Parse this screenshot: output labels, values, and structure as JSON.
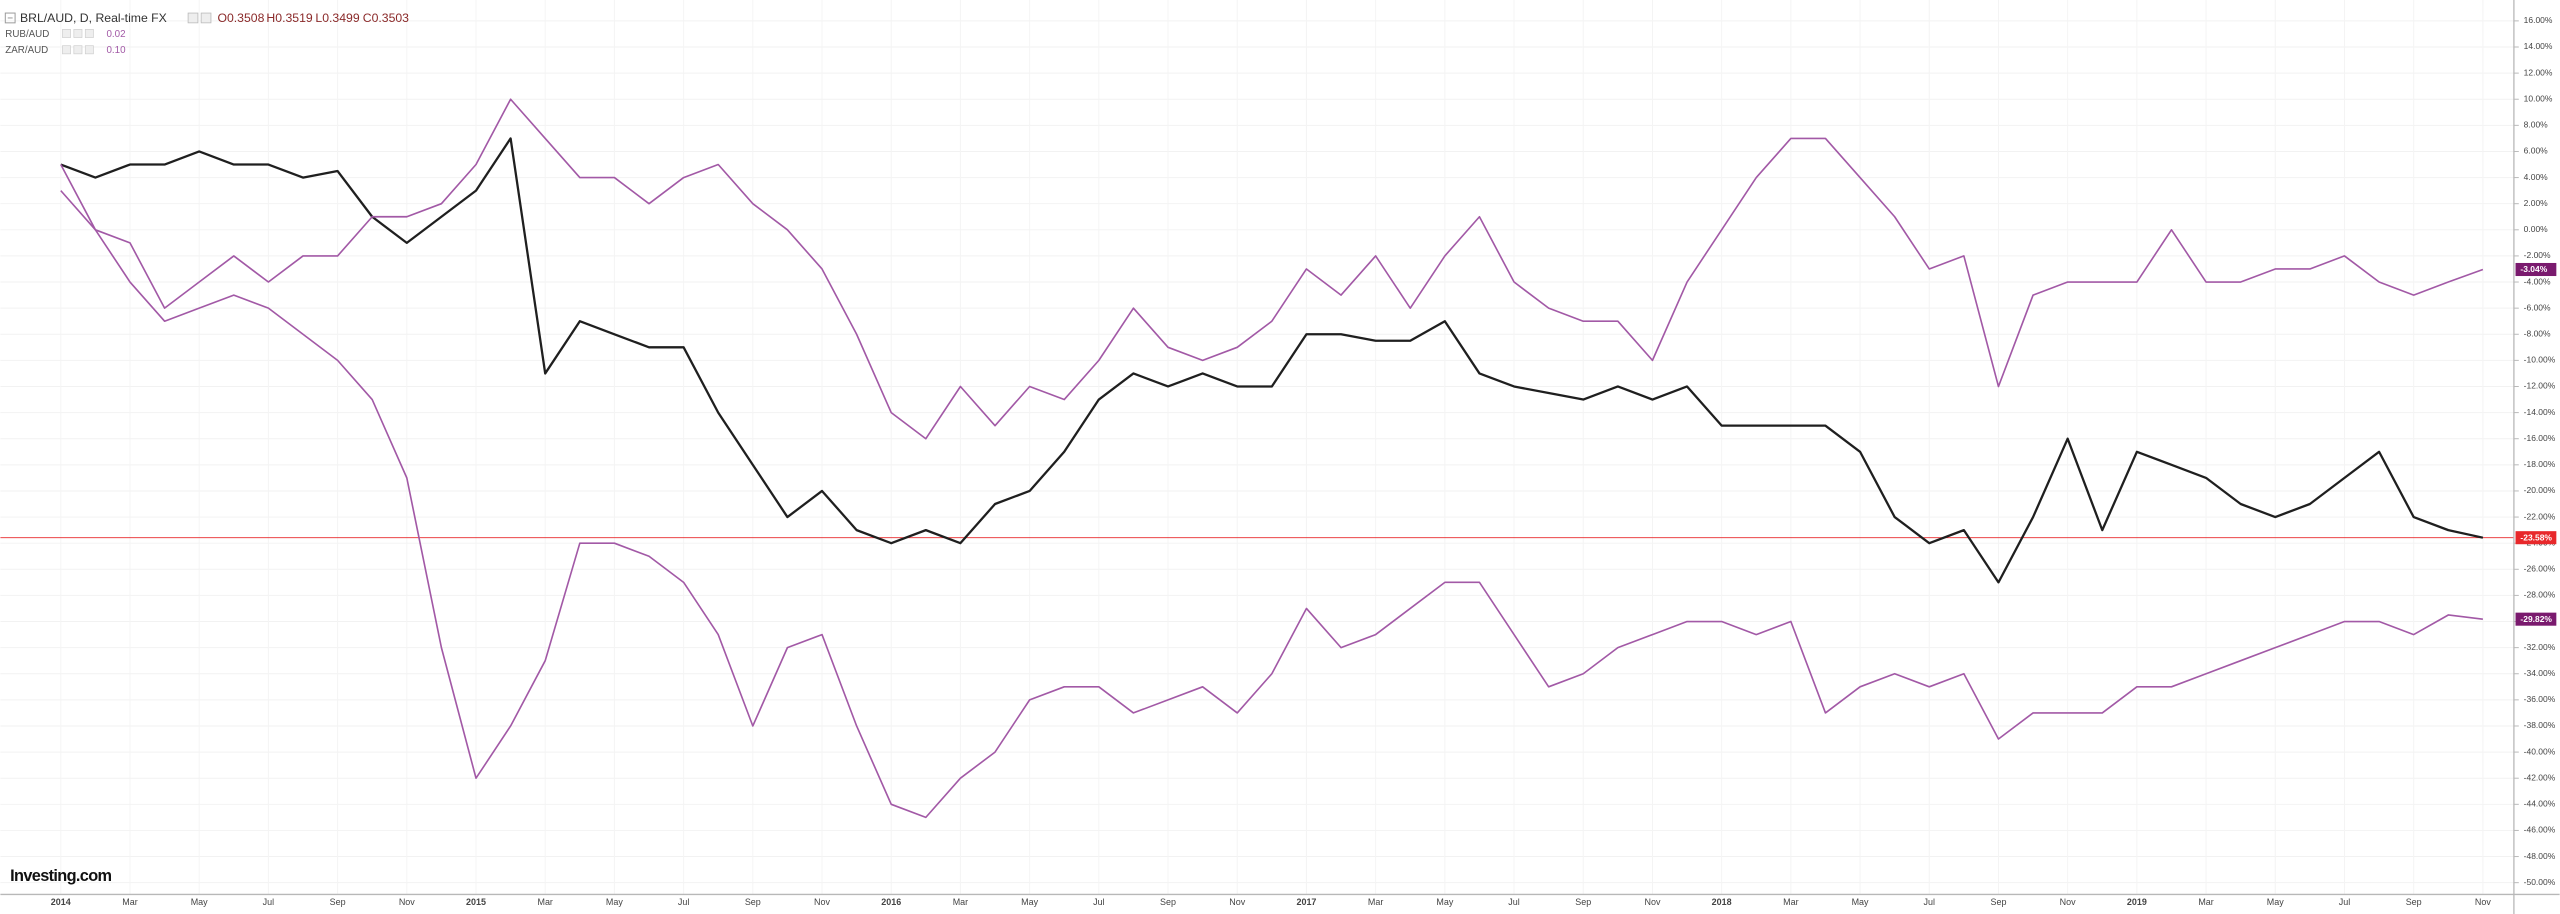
{
  "chart_data": {
    "type": "line",
    "header": {
      "ohlc": [
        "O0.3508",
        "H0.3519",
        "L0.3499",
        "C0.3503"
      ]
    },
    "watermark": "Investing.com",
    "categories": [
      "2014",
      null,
      "Mar",
      null,
      "May",
      null,
      "Jul",
      null,
      "Sep",
      null,
      "Nov",
      null,
      "2015",
      null,
      "Mar",
      null,
      "May",
      null,
      "Jul",
      null,
      "Sep",
      null,
      "Nov",
      null,
      "2016",
      null,
      "Mar",
      null,
      "May",
      null,
      "Jul",
      null,
      "Sep",
      null,
      "Nov",
      null,
      "2017",
      null,
      "Mar",
      null,
      "May",
      null,
      "Jul",
      null,
      "Sep",
      null,
      "Nov",
      null,
      "2018",
      null,
      "Mar",
      null,
      "May",
      null,
      "Jul",
      null,
      "Sep",
      null,
      "Nov",
      null,
      "2019",
      null,
      "Mar",
      null,
      "May",
      null,
      "Jul",
      null,
      "Sep",
      null,
      "Nov"
    ],
    "series": [
      {
        "name": "BRL/AUD, D, Real-time FX",
        "color": "#1f1f1f",
        "label_color": "#e8282b",
        "price_line": true,
        "values": [
          5,
          4,
          5,
          5,
          6,
          5,
          5,
          4,
          4.5,
          1,
          -1,
          1,
          3,
          7,
          -11,
          -7,
          -8,
          -9,
          -9,
          -14,
          -18,
          -22,
          -20,
          -23,
          -24,
          -23,
          -24,
          -21,
          -20,
          -17,
          -13,
          -11,
          -12,
          -11,
          -12,
          -12,
          -8,
          -8,
          -8.5,
          -8.5,
          -7,
          -11,
          -12,
          -12.5,
          -13,
          -12,
          -13,
          -12,
          -15,
          -15,
          -15,
          -15,
          -17,
          -22,
          -24,
          -23,
          -27,
          -22,
          -16,
          -23,
          -17,
          -18,
          -19,
          -21,
          -22,
          -21,
          -19,
          -17,
          -22,
          -23,
          -23.58
        ],
        "value_labels": [
          null,
          null,
          null,
          null,
          null,
          null,
          null,
          null,
          null,
          null,
          null,
          null,
          null,
          null,
          null,
          null,
          null,
          null,
          null,
          null,
          null,
          null,
          null,
          null,
          null,
          null,
          null,
          null,
          null,
          null,
          null,
          null,
          null,
          null,
          null,
          null,
          null,
          null,
          null,
          null,
          null,
          null,
          null,
          null,
          null,
          null,
          null,
          null,
          null,
          null,
          null,
          null,
          null,
          null,
          null,
          null,
          null,
          null,
          null,
          null,
          null,
          null,
          null,
          null,
          null,
          null,
          null,
          null,
          null,
          null,
          "-23.58%"
        ]
      },
      {
        "name": "RUB/AUD",
        "last_price": "0.02",
        "color": "#a259a6",
        "label_color": "#7a1a6e",
        "values": [
          3,
          0,
          -4,
          -7,
          -6,
          -5,
          -6,
          -8,
          -10,
          -13,
          -19,
          -32,
          -42,
          -38,
          -33,
          -24,
          -24,
          -25,
          -27,
          -31,
          -38,
          -32,
          -31,
          -38,
          -44,
          -45,
          -42,
          -40,
          -36,
          -35,
          -35,
          -37,
          -36,
          -35,
          -37,
          -34,
          -29,
          -32,
          -31,
          -29,
          -27,
          -27,
          -31,
          -35,
          -34,
          -32,
          -31,
          -30,
          -30,
          -31,
          -30,
          -37,
          -35,
          -34,
          -35,
          -34,
          -39,
          -37,
          -37,
          -37,
          -35,
          -35,
          -34,
          -33,
          -32,
          -31,
          -30,
          -30,
          -31,
          -29.5,
          -29.82
        ],
        "value_labels": [
          null,
          null,
          null,
          null,
          null,
          null,
          null,
          null,
          null,
          null,
          null,
          null,
          null,
          null,
          null,
          null,
          null,
          null,
          null,
          null,
          null,
          null,
          null,
          null,
          null,
          null,
          null,
          null,
          null,
          null,
          null,
          null,
          null,
          null,
          null,
          null,
          null,
          null,
          null,
          null,
          null,
          null,
          null,
          null,
          null,
          null,
          null,
          null,
          null,
          null,
          null,
          null,
          null,
          null,
          null,
          null,
          null,
          null,
          null,
          null,
          null,
          null,
          null,
          null,
          null,
          null,
          null,
          null,
          null,
          null,
          "-29.82%"
        ]
      },
      {
        "name": "ZAR/AUD",
        "last_price": "0.10",
        "color": "#a259a6",
        "label_color": "#7a1a6e",
        "values": [
          5,
          0,
          -1,
          -6,
          -4,
          -2,
          -4,
          -2,
          -2,
          1,
          1,
          2,
          5,
          10,
          7,
          4,
          4,
          2,
          4,
          5,
          2,
          0,
          -3,
          -8,
          -14,
          -16,
          -12,
          -15,
          -12,
          -13,
          -10,
          -6,
          -9,
          -10,
          -9,
          -7,
          -3,
          -5,
          -2,
          -6,
          -2,
          1,
          -4,
          -6,
          -7,
          -7,
          -10,
          -4,
          0,
          4,
          7,
          7,
          4,
          1,
          -3,
          -2,
          -12,
          -5,
          -4,
          -4,
          -4,
          0,
          -4,
          -4,
          -3,
          -3,
          -2,
          -4,
          -5,
          -4,
          -3.04
        ],
        "value_labels": [
          null,
          null,
          null,
          null,
          null,
          null,
          null,
          null,
          null,
          null,
          null,
          null,
          null,
          null,
          null,
          null,
          null,
          null,
          null,
          null,
          null,
          null,
          null,
          null,
          null,
          null,
          null,
          null,
          null,
          null,
          null,
          null,
          null,
          null,
          null,
          null,
          null,
          null,
          null,
          null,
          null,
          null,
          null,
          null,
          null,
          null,
          null,
          null,
          null,
          null,
          null,
          null,
          null,
          null,
          null,
          null,
          null,
          null,
          null,
          null,
          null,
          null,
          null,
          null,
          null,
          null,
          null,
          null,
          null,
          null,
          "-3.04%"
        ]
      }
    ],
    "ylim": [
      -50.9,
      17.6
    ],
    "yticks": [
      {
        "value": 16,
        "label": "16.00%"
      },
      {
        "value": 14,
        "label": "14.00%"
      },
      {
        "value": 12,
        "label": "12.00%"
      },
      {
        "value": 10,
        "label": "10.00%"
      },
      {
        "value": 8,
        "label": "8.00%"
      },
      {
        "value": 6,
        "label": "6.00%"
      },
      {
        "value": 4,
        "label": "4.00%"
      },
      {
        "value": 2,
        "label": "2.00%"
      },
      {
        "value": 0,
        "label": "0.00%"
      },
      {
        "value": -2,
        "label": "-2.00%"
      },
      {
        "value": -4,
        "label": "-4.00%"
      },
      {
        "value": -6,
        "label": "-6.00%"
      },
      {
        "value": -8,
        "label": "-8.00%"
      },
      {
        "value": -10,
        "label": "-10.00%"
      },
      {
        "value": -12,
        "label": "-12.00%"
      },
      {
        "value": -14,
        "label": "-14.00%"
      },
      {
        "value": -16,
        "label": "-16.00%"
      },
      {
        "value": -18,
        "label": "-18.00%"
      },
      {
        "value": -20,
        "label": "-20.00%"
      },
      {
        "value": -22,
        "label": "-22.00%"
      },
      {
        "value": -24,
        "label": "-24.00%"
      },
      {
        "value": -26,
        "label": "-26.00%"
      },
      {
        "value": -28,
        "label": "-28.00%"
      },
      {
        "value": -30,
        "label": "-30.00%"
      },
      {
        "value": -32,
        "label": "-32.00%"
      },
      {
        "value": -34,
        "label": "-34.00%"
      },
      {
        "value": -36,
        "label": "-36.00%"
      },
      {
        "value": -38,
        "label": "-38.00%"
      },
      {
        "value": -40,
        "label": "-40.00%"
      },
      {
        "value": -42,
        "label": "-42.00%"
      },
      {
        "value": -44,
        "label": "-44.00%"
      },
      {
        "value": -46,
        "label": "-46.00%"
      },
      {
        "value": -48,
        "label": "-48.00%"
      },
      {
        "value": -50,
        "label": "-50.00%"
      }
    ],
    "grid": true
  }
}
